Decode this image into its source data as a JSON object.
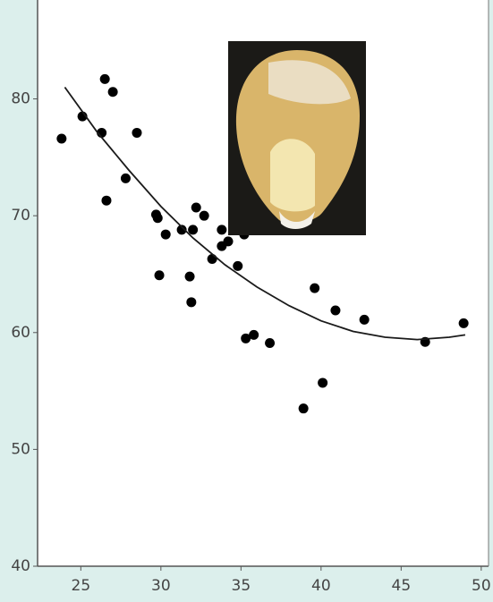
{
  "chart_data": {
    "type": "scatter",
    "xlim": [
      22.3,
      50.4
    ],
    "ylim": [
      40,
      87.7
    ],
    "xticks": [
      25,
      30,
      35,
      40,
      45,
      50
    ],
    "yticks": [
      40,
      50,
      60,
      70,
      80
    ],
    "series": [
      {
        "type": "scatter",
        "color": "#000000",
        "x": [
          23.8,
          25.1,
          26.5,
          27.0,
          26.3,
          26.6,
          27.8,
          28.5,
          29.7,
          29.8,
          30.3,
          29.9,
          31.3,
          32.0,
          32.2,
          32.7,
          31.8,
          31.9,
          33.2,
          33.8,
          33.8,
          34.2,
          34.8,
          35.2,
          35.3,
          35.8,
          36.8,
          38.9,
          39.6,
          40.1,
          40.9,
          42.7,
          46.5,
          48.9
        ],
        "values": [
          76.6,
          78.5,
          81.7,
          80.6,
          77.1,
          71.3,
          73.2,
          77.1,
          70.1,
          69.8,
          68.4,
          64.9,
          68.8,
          68.8,
          70.7,
          70.0,
          64.8,
          62.6,
          66.3,
          68.8,
          67.4,
          67.8,
          65.7,
          68.4,
          59.5,
          59.8,
          59.1,
          53.5,
          63.8,
          55.7,
          61.9,
          61.1,
          59.2,
          60.8
        ]
      },
      {
        "type": "line",
        "color": "#1a1a1a",
        "x": [
          24,
          26,
          28,
          30,
          32,
          34,
          36,
          38,
          40,
          42,
          44,
          46,
          48,
          49
        ],
        "values": [
          81.0,
          77.2,
          73.9,
          70.8,
          68.1,
          65.8,
          63.9,
          62.3,
          61.0,
          60.1,
          59.6,
          59.4,
          59.6,
          59.8
        ]
      }
    ]
  }
}
